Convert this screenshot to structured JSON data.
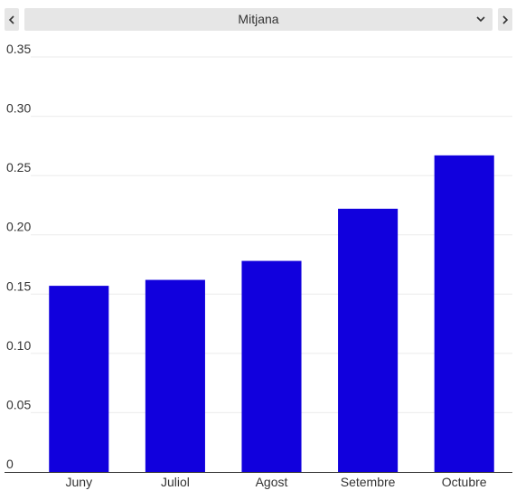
{
  "selector": {
    "selected": "Mitjana",
    "prev_icon": "chevron-left-icon",
    "next_icon": "chevron-right-icon",
    "dropdown_icon": "chevron-down-icon"
  },
  "colors": {
    "bar": "#1100dd",
    "grid": "#ebebeb",
    "axis": "#333333",
    "control_bg": "#e6e6e6"
  },
  "chart_data": {
    "type": "bar",
    "title": "",
    "xlabel": "",
    "ylabel": "",
    "categories": [
      "Juny",
      "Juliol",
      "Agost",
      "Setembre",
      "Octubre"
    ],
    "values": [
      0.157,
      0.162,
      0.178,
      0.222,
      0.267
    ],
    "ylim": [
      0,
      0.35
    ],
    "yticks": [
      "0",
      "0.05",
      "0.10",
      "0.15",
      "0.20",
      "0.25",
      "0.30",
      "0.35"
    ],
    "grid": true,
    "legend": "none"
  }
}
